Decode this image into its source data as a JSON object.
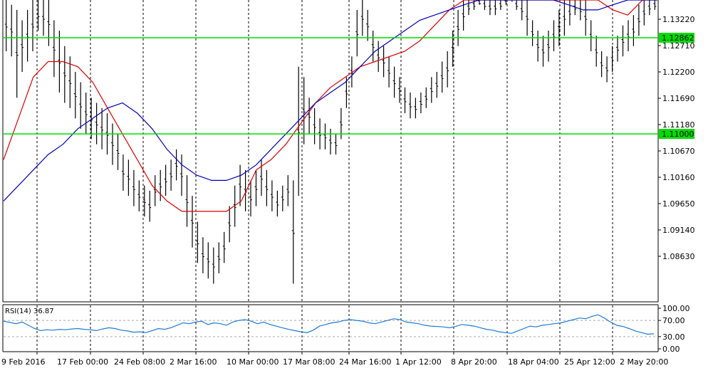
{
  "chart_data": {
    "type": "line",
    "price": {
      "y_ticks": [
        1.0863,
        1.0914,
        1.0965,
        1.1016,
        1.1067,
        1.1118,
        1.1169,
        1.122,
        1.1271,
        1.1322
      ],
      "y_tick_labels": [
        "1.08630",
        "1.09140",
        "1.09650",
        "1.10160",
        "1.10670",
        "1.11180",
        "1.11690",
        "1.12200",
        "1.12710",
        "1.13220"
      ],
      "levels": [
        {
          "value": 1.12862,
          "label": "1.12862",
          "color": "#00dd00"
        },
        {
          "value": 1.11,
          "label": "1.11000",
          "color": "#00dd00"
        }
      ],
      "series": [
        {
          "style": "bars",
          "color": "#000000",
          "bars": [
            [
              1.137,
              1.126
            ],
            [
              1.135,
              1.125
            ],
            [
              1.134,
              1.117
            ],
            [
              1.132,
              1.122
            ],
            [
              1.134,
              1.124
            ],
            [
              1.136,
              1.126
            ],
            [
              1.142,
              1.13
            ],
            [
              1.14,
              1.129
            ],
            [
              1.138,
              1.127
            ],
            [
              1.132,
              1.121
            ],
            [
              1.13,
              1.118
            ],
            [
              1.127,
              1.116
            ],
            [
              1.125,
              1.115
            ],
            [
              1.122,
              1.113
            ],
            [
              1.12,
              1.111
            ],
            [
              1.118,
              1.11
            ],
            [
              1.117,
              1.109
            ],
            [
              1.116,
              1.108
            ],
            [
              1.115,
              1.107
            ],
            [
              1.114,
              1.106
            ],
            [
              1.112,
              1.104
            ],
            [
              1.11,
              1.103
            ],
            [
              1.106,
              1.099
            ],
            [
              1.105,
              1.098
            ],
            [
              1.103,
              1.096
            ],
            [
              1.101,
              1.095
            ],
            [
              1.1,
              1.094
            ],
            [
              1.099,
              1.093
            ],
            [
              1.102,
              1.096
            ],
            [
              1.103,
              1.097
            ],
            [
              1.104,
              1.098
            ],
            [
              1.105,
              1.099
            ],
            [
              1.107,
              1.101
            ],
            [
              1.106,
              1.098
            ],
            [
              1.102,
              1.092
            ],
            [
              1.098,
              1.088
            ],
            [
              1.093,
              1.085
            ],
            [
              1.09,
              1.083
            ],
            [
              1.089,
              1.082
            ],
            [
              1.088,
              1.081
            ],
            [
              1.089,
              1.083
            ],
            [
              1.091,
              1.085
            ],
            [
              1.096,
              1.089
            ],
            [
              1.1,
              1.092
            ],
            [
              1.104,
              1.096
            ],
            [
              1.103,
              1.095
            ],
            [
              1.101,
              1.094
            ],
            [
              1.103,
              1.096
            ],
            [
              1.105,
              1.098
            ],
            [
              1.103,
              1.096
            ],
            [
              1.101,
              1.095
            ],
            [
              1.099,
              1.094
            ],
            [
              1.1,
              1.095
            ],
            [
              1.102,
              1.096
            ],
            [
              1.101,
              1.081
            ],
            [
              1.123,
              1.098
            ],
            [
              1.121,
              1.108
            ],
            [
              1.117,
              1.11
            ],
            [
              1.115,
              1.108
            ],
            [
              1.113,
              1.107
            ],
            [
              1.112,
              1.107
            ],
            [
              1.111,
              1.106
            ],
            [
              1.11,
              1.106
            ],
            [
              1.115,
              1.109
            ],
            [
              1.121,
              1.115
            ],
            [
              1.125,
              1.119
            ],
            [
              1.134,
              1.125
            ],
            [
              1.136,
              1.129
            ],
            [
              1.134,
              1.128
            ],
            [
              1.13,
              1.124
            ],
            [
              1.128,
              1.122
            ],
            [
              1.127,
              1.121
            ],
            [
              1.125,
              1.119
            ],
            [
              1.123,
              1.117
            ],
            [
              1.121,
              1.116
            ],
            [
              1.119,
              1.114
            ],
            [
              1.118,
              1.113
            ],
            [
              1.117,
              1.113
            ],
            [
              1.118,
              1.114
            ],
            [
              1.119,
              1.115
            ],
            [
              1.121,
              1.116
            ],
            [
              1.122,
              1.117
            ],
            [
              1.124,
              1.118
            ],
            [
              1.126,
              1.119
            ],
            [
              1.13,
              1.123
            ],
            [
              1.134,
              1.127
            ],
            [
              1.137,
              1.13
            ],
            [
              1.139,
              1.133
            ],
            [
              1.14,
              1.134
            ],
            [
              1.141,
              1.135
            ],
            [
              1.14,
              1.134
            ],
            [
              1.139,
              1.133
            ],
            [
              1.138,
              1.133
            ],
            [
              1.139,
              1.134
            ],
            [
              1.14,
              1.135
            ],
            [
              1.141,
              1.136
            ],
            [
              1.14,
              1.134
            ],
            [
              1.139,
              1.132
            ],
            [
              1.136,
              1.129
            ],
            [
              1.132,
              1.127
            ],
            [
              1.13,
              1.124
            ],
            [
              1.129,
              1.123
            ],
            [
              1.13,
              1.124
            ],
            [
              1.132,
              1.126
            ],
            [
              1.134,
              1.127
            ],
            [
              1.136,
              1.129
            ],
            [
              1.137,
              1.131
            ],
            [
              1.139,
              1.133
            ],
            [
              1.138,
              1.132
            ],
            [
              1.136,
              1.129
            ],
            [
              1.132,
              1.126
            ],
            [
              1.129,
              1.123
            ],
            [
              1.126,
              1.121
            ],
            [
              1.125,
              1.12
            ],
            [
              1.127,
              1.122
            ],
            [
              1.129,
              1.124
            ],
            [
              1.131,
              1.125
            ],
            [
              1.132,
              1.126
            ],
            [
              1.133,
              1.127
            ],
            [
              1.135,
              1.129
            ],
            [
              1.137,
              1.131
            ],
            [
              1.138,
              1.133
            ],
            [
              1.14,
              1.134
            ]
          ]
        },
        {
          "style": "line",
          "color": "#dd0000",
          "values": [
            1.105,
            1.113,
            1.121,
            1.124,
            1.124,
            1.123,
            1.12,
            1.115,
            1.11,
            1.105,
            1.1,
            1.097,
            1.095,
            1.095,
            1.095,
            1.095,
            1.097,
            1.103,
            1.105,
            1.108,
            1.112,
            1.116,
            1.119,
            1.121,
            1.123,
            1.124,
            1.125,
            1.126,
            1.128,
            1.131,
            1.134,
            1.138,
            1.141,
            1.144,
            1.147,
            1.148,
            1.145,
            1.141,
            1.139,
            1.138,
            1.136,
            1.134,
            1.133,
            1.136,
            1.14
          ]
        },
        {
          "style": "line",
          "color": "#0000bb",
          "values": [
            1.097,
            1.1,
            1.103,
            1.106,
            1.108,
            1.111,
            1.113,
            1.115,
            1.116,
            1.114,
            1.111,
            1.107,
            1.104,
            1.102,
            1.101,
            1.101,
            1.102,
            1.104,
            1.107,
            1.11,
            1.113,
            1.116,
            1.118,
            1.12,
            1.123,
            1.126,
            1.128,
            1.13,
            1.132,
            1.133,
            1.134,
            1.135,
            1.136,
            1.137,
            1.138,
            1.138,
            1.137,
            1.136,
            1.135,
            1.134,
            1.134,
            1.135,
            1.136,
            1.137,
            1.138
          ]
        }
      ]
    },
    "rsi": {
      "title": "RSI(14) 36.87",
      "y_ticks": [
        0,
        30,
        70,
        100
      ],
      "y_tick_labels": [
        "0.00",
        "30.00",
        "70.00",
        "100.00"
      ],
      "ylim": [
        0,
        100
      ],
      "color": "#1e7bd6",
      "values": [
        68,
        65,
        62,
        66,
        58,
        50,
        45,
        47,
        46,
        48,
        47,
        49,
        50,
        48,
        47,
        45,
        49,
        52,
        50,
        46,
        44,
        41,
        42,
        40,
        45,
        50,
        48,
        52,
        58,
        64,
        62,
        66,
        68,
        60,
        64,
        62,
        58,
        66,
        70,
        72,
        68,
        62,
        66,
        60,
        56,
        52,
        48,
        45,
        42,
        40,
        46,
        56,
        60,
        64,
        66,
        70,
        72,
        70,
        68,
        64,
        62,
        66,
        70,
        74,
        72,
        66,
        64,
        62,
        58,
        56,
        55,
        54,
        52,
        55,
        60,
        58,
        56,
        52,
        48,
        46,
        42,
        40,
        38,
        44,
        50,
        56,
        54,
        58,
        60,
        62,
        64,
        68,
        72,
        76,
        74,
        80,
        84,
        76,
        66,
        58,
        55,
        50,
        44,
        40,
        36,
        37
      ]
    },
    "x_labels": [
      "9 Feb 2016",
      "17 Feb 00:00",
      "24 Feb 08:00",
      "2 Mar 16:00",
      "10 Mar 00:00",
      "17 Mar 08:00",
      "24 Mar 16:00",
      "1 Apr 12:00",
      "8 Apr 20:00",
      "18 Apr 04:00",
      "25 Apr 12:00",
      "2 May 20:00"
    ]
  }
}
